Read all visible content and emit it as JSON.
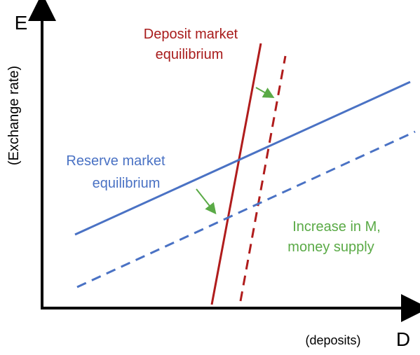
{
  "axes": {
    "y_symbol": "E",
    "y_label": "(Exchange rate)",
    "x_symbol": "D",
    "x_label": "(deposits)"
  },
  "curves": {
    "deposit": {
      "lines": [
        "Deposit market",
        "equilibrium"
      ]
    },
    "reserve": {
      "lines": [
        "Reserve market",
        "equilibrium"
      ]
    },
    "shift": {
      "lines": [
        "Increase in M,",
        "money supply"
      ]
    }
  }
}
